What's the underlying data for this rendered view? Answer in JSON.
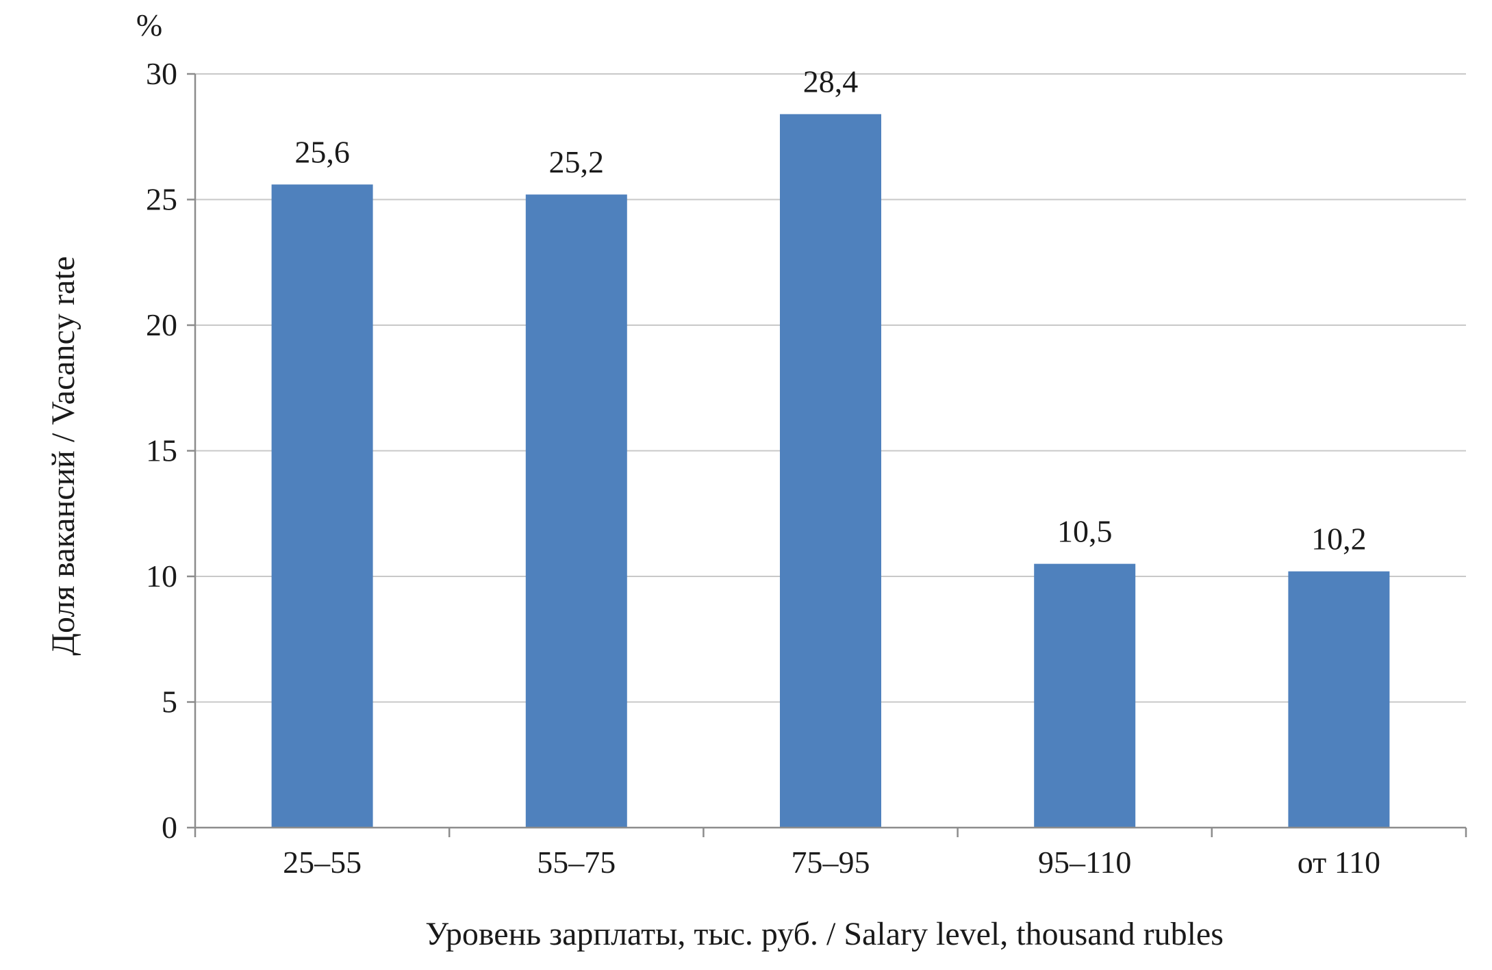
{
  "chart_data": {
    "type": "bar",
    "categories": [
      "25–55",
      "55–75",
      "75–95",
      "95–110",
      "от 110"
    ],
    "values": [
      25.6,
      25.2,
      28.4,
      10.5,
      10.2
    ],
    "data_labels": [
      "25,6",
      "25,2",
      "28,4",
      "10,5",
      "10,2"
    ],
    "title": "",
    "xlabel": "Уровень зарплаты, тыс. руб. / Salary level, thousand rubles",
    "ylabel": "Доля вакансий / Vacancy rate",
    "y_unit": "%",
    "ylim": [
      0,
      30
    ],
    "yticks": [
      0,
      5,
      10,
      15,
      20,
      25,
      30
    ],
    "grid": true,
    "legend": "none",
    "bar_color": "#4f81bd"
  }
}
